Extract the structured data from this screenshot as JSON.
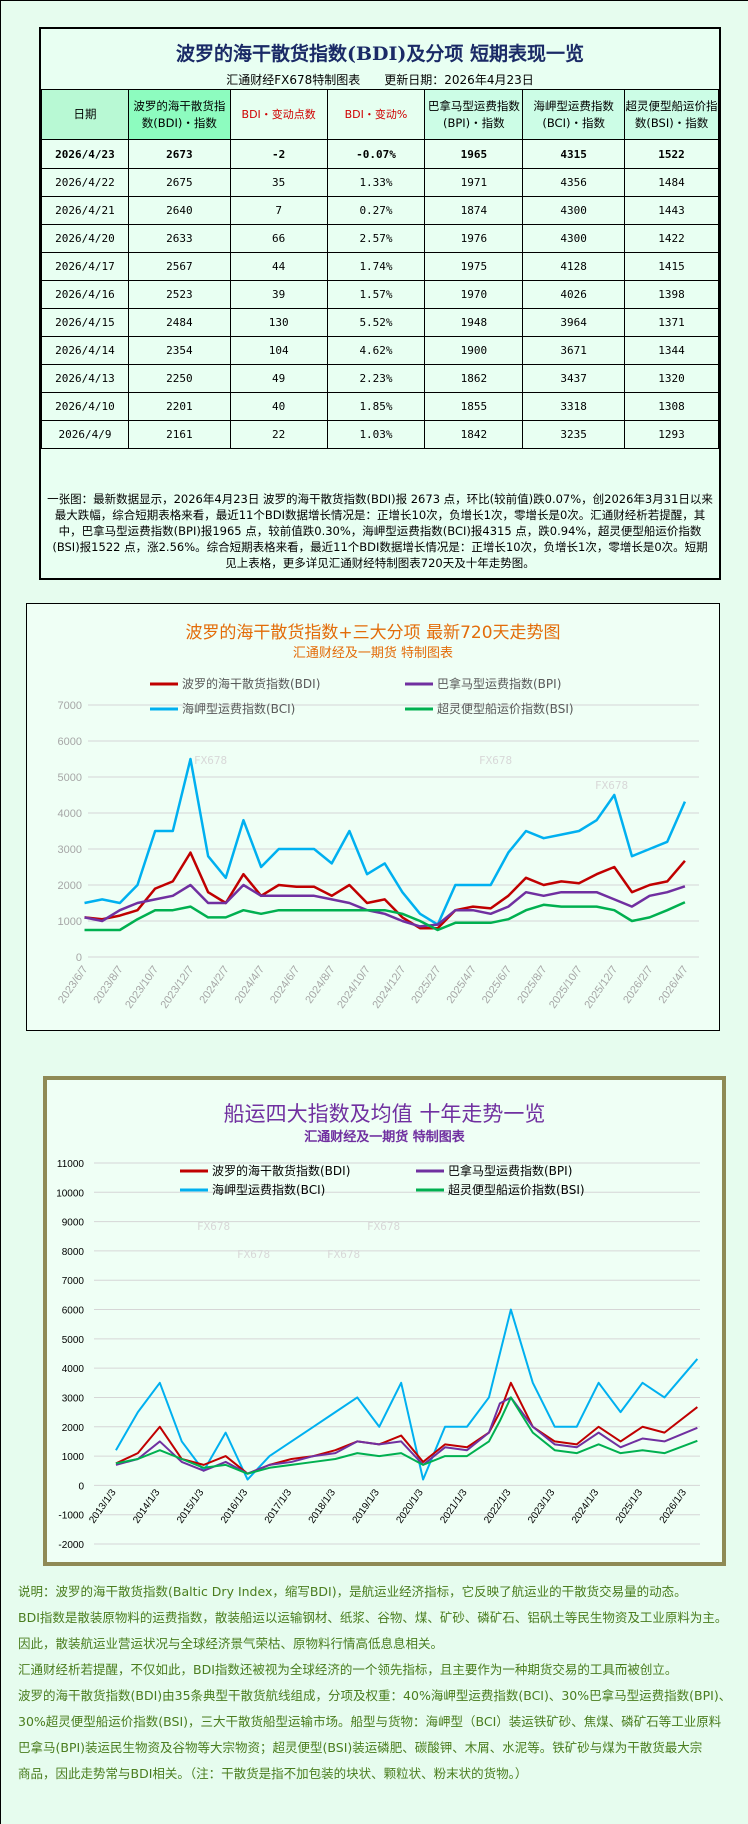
{
  "table": {
    "title": "波罗的海干散货指数(BDI)及分项 短期表现一览",
    "source": "汇通财经FX678特制图表",
    "updated": "更新日期：2026年4月23日",
    "headers": [
      "日期",
      "波罗的海干散货指数(BDI)・指数",
      "BDI・变动点数",
      "BDI・变动%",
      "巴拿马型运费指数(BPI)・指数",
      "海岬型运费指数(BCI)・指数",
      "超灵便型船运价指数(BSI)・指数"
    ],
    "rows": [
      [
        "2026/4/23",
        "2673",
        "-2",
        "-0.07%",
        "1965",
        "4315",
        "1522"
      ],
      [
        "2026/4/22",
        "2675",
        "35",
        "1.33%",
        "1971",
        "4356",
        "1484"
      ],
      [
        "2026/4/21",
        "2640",
        "7",
        "0.27%",
        "1874",
        "4300",
        "1443"
      ],
      [
        "2026/4/20",
        "2633",
        "66",
        "2.57%",
        "1976",
        "4300",
        "1422"
      ],
      [
        "2026/4/17",
        "2567",
        "44",
        "1.74%",
        "1975",
        "4128",
        "1415"
      ],
      [
        "2026/4/16",
        "2523",
        "39",
        "1.57%",
        "1970",
        "4026",
        "1398"
      ],
      [
        "2026/4/15",
        "2484",
        "130",
        "5.52%",
        "1948",
        "3964",
        "1371"
      ],
      [
        "2026/4/14",
        "2354",
        "104",
        "4.62%",
        "1900",
        "3671",
        "1344"
      ],
      [
        "2026/4/13",
        "2250",
        "49",
        "2.23%",
        "1862",
        "3437",
        "1320"
      ],
      [
        "2026/4/10",
        "2201",
        "40",
        "1.85%",
        "1855",
        "3318",
        "1308"
      ],
      [
        "2026/4/9",
        "2161",
        "22",
        "1.03%",
        "1842",
        "3235",
        "1293"
      ]
    ],
    "summary": "一张图：最新数据显示，2026年4月23日 波罗的海干散货指数(BDI)报 2673 点，环比(较前值)跌0.07%，创2026年3月31日以来最大跌幅，综合短期表格来看，最近11个BDI数据增长情况是：正增长10次，负增长1次，零增长是0次。汇通财经析若提醒，其中，巴拿马型运费指数(BPI)报1965 点，较前值跌0.30%，海岬型运费指数(BCI)报4315 点，跌0.94%，超灵便型船运价指数(BSI)报1522 点，涨2.56%。综合短期表格来看，最近11个BDI数据增长情况是：正增长10次，负增长1次，零增长是0次。短期见上表格，更多详见汇通财经特制图表720天及十年走势图。"
  },
  "colors": {
    "BDI": "#c00000",
    "BPI": "#7030a0",
    "BCI": "#00b0f0",
    "BSI": "#00b050",
    "title1": "#e36c09",
    "title2": "#7030a0"
  },
  "watermark": "FX678",
  "chart_data": [
    {
      "type": "line",
      "title": "波罗的海干散货指数+三大分项  最新720天走势图",
      "subtitle": "汇通财经及一期货  特制图表",
      "legend_position": "top",
      "grid": true,
      "ylim": [
        0,
        7000
      ],
      "yticks": [
        0,
        1000,
        2000,
        3000,
        4000,
        5000,
        6000,
        7000
      ],
      "xticks": [
        "2023/6/7",
        "2023/8/7",
        "2023/10/7",
        "2023/12/7",
        "2024/2/7",
        "2024/4/7",
        "2024/6/7",
        "2024/8/7",
        "2024/10/7",
        "2024/12/7",
        "2025/2/7",
        "2025/4/7",
        "2025/6/7",
        "2025/8/7",
        "2025/10/7",
        "2025/12/7",
        "2026/2/7",
        "2026/4/7"
      ],
      "x": [
        "2023/6",
        "2023/7",
        "2023/8",
        "2023/9",
        "2023/10",
        "2023/11",
        "2023/12",
        "2024/1",
        "2024/2",
        "2024/3",
        "2024/4",
        "2024/5",
        "2024/6",
        "2024/7",
        "2024/8",
        "2024/9",
        "2024/10",
        "2024/11",
        "2024/12",
        "2025/1",
        "2025/2",
        "2025/3",
        "2025/4",
        "2025/5",
        "2025/6",
        "2025/7",
        "2025/8",
        "2025/9",
        "2025/10",
        "2025/11",
        "2025/12",
        "2026/1",
        "2026/2",
        "2026/3",
        "2026/4"
      ],
      "series": [
        {
          "name": "波罗的海干散货指数(BDI)",
          "key": "BDI",
          "values": [
            1100,
            1050,
            1150,
            1300,
            1900,
            2100,
            2900,
            1800,
            1500,
            2300,
            1700,
            2000,
            1950,
            1950,
            1700,
            2000,
            1500,
            1600,
            1100,
            800,
            800,
            1300,
            1400,
            1350,
            1700,
            2200,
            2000,
            2100,
            2050,
            2300,
            2500,
            1800,
            2000,
            2100,
            2673
          ]
        },
        {
          "name": "巴拿马型运费指数(BPI)",
          "key": "BPI",
          "values": [
            1100,
            1000,
            1300,
            1500,
            1600,
            1700,
            2000,
            1500,
            1500,
            2000,
            1700,
            1700,
            1700,
            1700,
            1600,
            1500,
            1300,
            1200,
            1000,
            850,
            900,
            1300,
            1300,
            1200,
            1400,
            1800,
            1700,
            1800,
            1800,
            1800,
            1600,
            1400,
            1700,
            1800,
            1965
          ]
        },
        {
          "name": "海岬型运费指数(BCI)",
          "key": "BCI",
          "values": [
            1500,
            1600,
            1500,
            2000,
            3500,
            3500,
            5500,
            2800,
            2200,
            3800,
            2500,
            3000,
            3000,
            3000,
            2600,
            3500,
            2300,
            2600,
            1800,
            1200,
            900,
            2000,
            2000,
            2000,
            2900,
            3500,
            3300,
            3400,
            3500,
            3800,
            4500,
            2800,
            3000,
            3200,
            4315
          ]
        },
        {
          "name": "超灵便型船运价指数(BSI)",
          "key": "BSI",
          "values": [
            750,
            750,
            750,
            1050,
            1300,
            1300,
            1400,
            1100,
            1100,
            1300,
            1200,
            1300,
            1300,
            1300,
            1300,
            1300,
            1300,
            1300,
            1200,
            1000,
            750,
            950,
            950,
            950,
            1050,
            1300,
            1450,
            1400,
            1400,
            1400,
            1300,
            1000,
            1100,
            1300,
            1522
          ]
        }
      ]
    },
    {
      "type": "line",
      "title": "船运四大指数及均值 十年走势一览",
      "subtitle": "汇通财经及一期货 特制图表",
      "legend_position": "top",
      "grid": true,
      "ylim": [
        -2000,
        11000
      ],
      "yticks": [
        -2000,
        -1000,
        0,
        1000,
        2000,
        3000,
        4000,
        5000,
        6000,
        7000,
        8000,
        9000,
        10000,
        11000
      ],
      "xticks": [
        "2013/1/3",
        "2014/1/3",
        "2015/1/3",
        "2016/1/3",
        "2017/1/3",
        "2018/1/3",
        "2019/1/3",
        "2020/1/3",
        "2021/1/3",
        "2022/1/3",
        "2023/1/3",
        "2024/1/3",
        "2025/1/3",
        "2026/1/3"
      ],
      "x": [
        "2013/1",
        "2013/7",
        "2014/1",
        "2014/7",
        "2015/1",
        "2015/7",
        "2016/1",
        "2016/7",
        "2017/1",
        "2017/7",
        "2018/1",
        "2018/7",
        "2019/1",
        "2019/7",
        "2020/1",
        "2020/7",
        "2021/1",
        "2021/7",
        "2021/10",
        "2022/1",
        "2022/7",
        "2023/1",
        "2023/7",
        "2024/1",
        "2024/7",
        "2025/1",
        "2025/7",
        "2026/4"
      ],
      "series": [
        {
          "name": "波罗的海干散货指数(BDI)",
          "key": "BDI",
          "values": [
            750,
            1100,
            2000,
            900,
            700,
            1000,
            400,
            700,
            900,
            1000,
            1200,
            1500,
            1400,
            1700,
            800,
            1400,
            1300,
            1800,
            2500,
            3500,
            2000,
            1500,
            1400,
            2000,
            1500,
            2000,
            1800,
            2673
          ]
        },
        {
          "name": "巴拿马型运费指数(BPI)",
          "key": "BPI",
          "values": [
            700,
            900,
            1500,
            800,
            500,
            800,
            400,
            700,
            800,
            1000,
            1100,
            1500,
            1400,
            1500,
            700,
            1300,
            1200,
            1800,
            2800,
            3000,
            2000,
            1400,
            1300,
            1800,
            1300,
            1600,
            1500,
            1965
          ]
        },
        {
          "name": "海岬型运费指数(BCI)",
          "key": "BCI",
          "values": [
            1200,
            2500,
            3500,
            1500,
            500,
            1800,
            200,
            1000,
            1500,
            2000,
            2500,
            3000,
            2000,
            3500,
            200,
            2000,
            2000,
            3000,
            4500,
            6000,
            3500,
            2000,
            2000,
            3500,
            2500,
            3500,
            3000,
            4315
          ]
        },
        {
          "name": "超灵便型船运价指数(BSI)",
          "key": "BSI",
          "values": [
            750,
            900,
            1200,
            900,
            600,
            700,
            400,
            600,
            700,
            800,
            900,
            1100,
            1000,
            1100,
            700,
            1000,
            1000,
            1500,
            2200,
            3000,
            1800,
            1200,
            1100,
            1400,
            1100,
            1200,
            1100,
            1522
          ]
        }
      ]
    }
  ],
  "notes": [
    "说明：波罗的海干散货指数(Baltic Dry Index，缩写BDI)，是航运业经济指标，它反映了航运业的干散货交易量的动态。",
    "BDI指数是散装原物料的运费指数，散装船运以运输钢材、纸浆、谷物、煤、矿砂、磷矿石、铝矾土等民生物资及工业原料为主。",
    "因此，散装航运业营运状况与全球经济景气荣枯、原物料行情高低息息相关。",
    "汇通财经析若提醒，不仅如此，BDI指数还被视为全球经济的一个领先指标，且主要作为一种期货交易的工具而被创立。",
    "波罗的海干散货指数(BDI)由35条典型干散货航线组成，分项及权重：40%海岬型运费指数(BCI)、30%巴拿马型运费指数(BPI)、",
    "30%超灵便型船运价指数(BSI)，三大干散货船型运输市场。船型与货物：海岬型（BCI）装运铁矿砂、焦煤、磷矿石等工业原料",
    "巴拿马(BPI)装运民生物资及谷物等大宗物资；超灵便型(BSI)装运磷肥、碳酸钾、木屑、水泥等。铁矿砂与煤为干散货最大宗",
    "商品，因此走势常与BDI相关。（注：干散货是指不加包装的块状、颗粒状、粉末状的货物。）"
  ]
}
